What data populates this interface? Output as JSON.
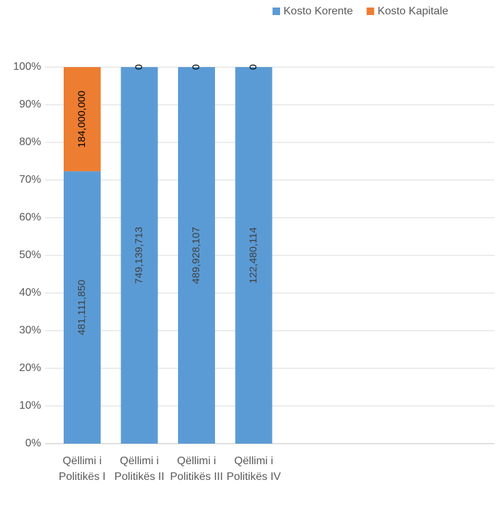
{
  "chart_data": {
    "type": "bar",
    "stacking": "percent",
    "categories": [
      "Qëllimi i Politikës I",
      "Qëllimi i Politikës II",
      "Qëllimi i Politikës III",
      "Qëllimi i Politikës IV"
    ],
    "series": [
      {
        "name": "Kosto Korente",
        "color": "#5b9bd5",
        "values": [
          481111850,
          749139713,
          489928107,
          122480114
        ],
        "value_labels": [
          "481,111,850",
          "749,139,713",
          "489,928,107",
          "122,480,114"
        ]
      },
      {
        "name": "Kosto Kapitale",
        "color": "#ed7d31",
        "values": [
          184000000,
          0,
          0,
          0
        ],
        "value_labels": [
          "184,000,000",
          "0",
          "0",
          "0"
        ]
      }
    ],
    "ylim": [
      0,
      100
    ],
    "yticks": [
      {
        "value": 0,
        "label": "0%"
      },
      {
        "value": 10,
        "label": "10%"
      },
      {
        "value": 20,
        "label": "20%"
      },
      {
        "value": 30,
        "label": "30%"
      },
      {
        "value": 40,
        "label": "40%"
      },
      {
        "value": 50,
        "label": "50%"
      },
      {
        "value": 60,
        "label": "60%"
      },
      {
        "value": 70,
        "label": "70%"
      },
      {
        "value": 80,
        "label": "80%"
      },
      {
        "value": 90,
        "label": "90%"
      },
      {
        "value": 100,
        "label": "100%"
      }
    ],
    "grid": true,
    "legend": "top-right"
  }
}
